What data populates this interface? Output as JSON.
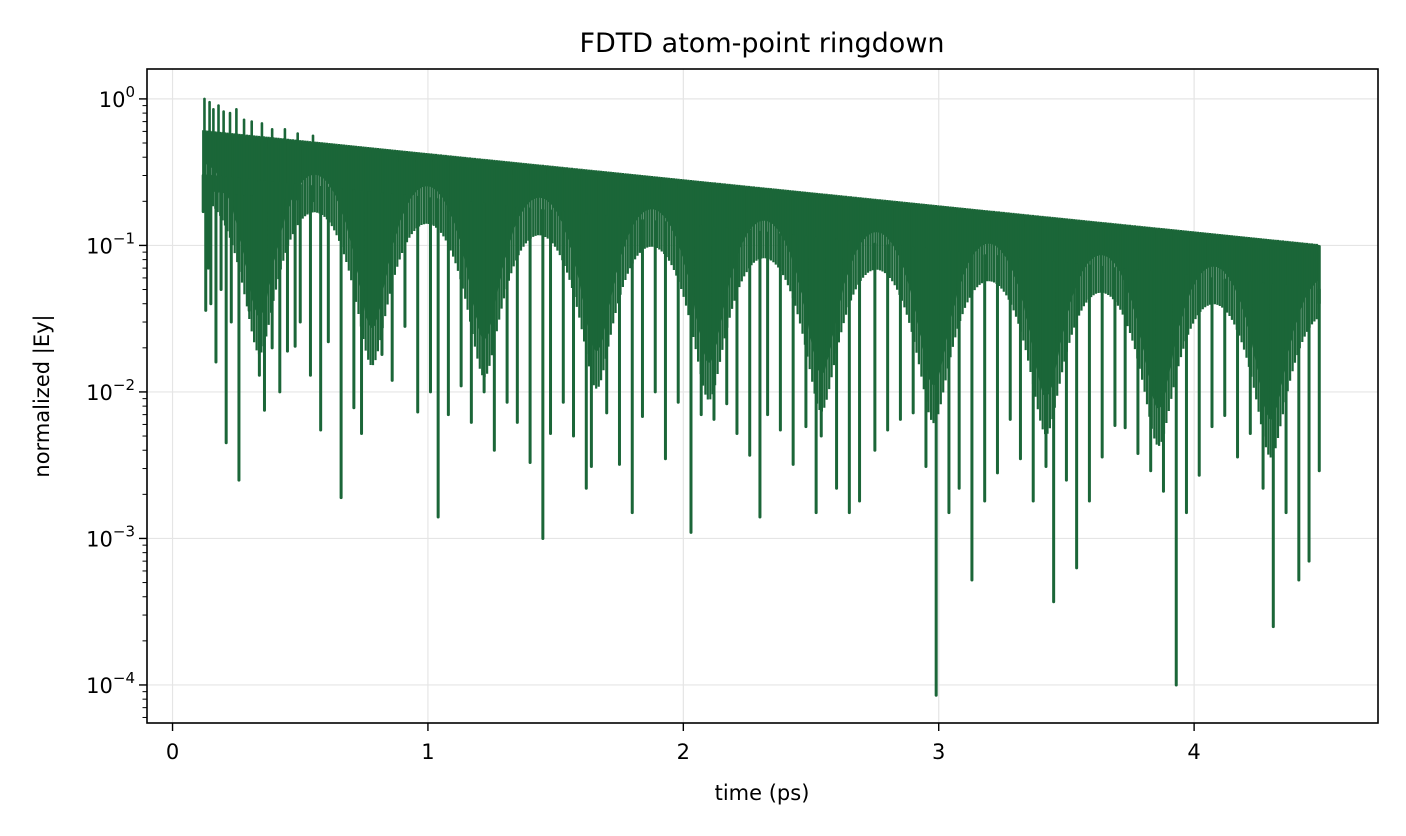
{
  "chart_data": {
    "type": "line",
    "title": "FDTD atom-point ringdown",
    "xlabel": "time (ps)",
    "ylabel": "normalized |Ey|",
    "xlim": [
      -0.1,
      4.72
    ],
    "ylim": [
      5.5e-05,
      1.6
    ],
    "yscale": "log",
    "grid": true,
    "line_color": "#1b6638",
    "x_ticks": [
      0,
      1,
      2,
      3,
      4
    ],
    "x_tick_labels": [
      "0",
      "1",
      "2",
      "3",
      "4"
    ],
    "y_ticks": [
      1,
      0.1,
      0.01,
      0.001,
      0.0001
    ],
    "y_tick_labels": [
      {
        "base": "10",
        "exp": "0"
      },
      {
        "base": "10",
        "exp": "−1"
      },
      {
        "base": "10",
        "exp": "−2"
      },
      {
        "base": "10",
        "exp": "−3"
      },
      {
        "base": "10",
        "exp": "−4"
      }
    ],
    "series": [
      {
        "t_start": 0.12,
        "t_end": 4.49,
        "start_amplitude": 0.6,
        "end_amplitude": 0.1,
        "beat_period": 0.44,
        "x": [
          0.12,
          0.13,
          0.14,
          0.15,
          0.17,
          0.19,
          0.21,
          0.23,
          0.26,
          0.3,
          0.34,
          0.36,
          0.39,
          0.42,
          0.45,
          0.48,
          0.5,
          0.54,
          0.58,
          0.61,
          0.66,
          0.71,
          0.74,
          0.77,
          0.82,
          0.86,
          0.91,
          0.96,
          1.01,
          1.04,
          1.08,
          1.13,
          1.17,
          1.22,
          1.26,
          1.31,
          1.35,
          1.4,
          1.45,
          1.48,
          1.53,
          1.57,
          1.62,
          1.64,
          1.7,
          1.75,
          1.8,
          1.84,
          1.89,
          1.93,
          1.98,
          2.03,
          2.07,
          2.12,
          2.17,
          2.21,
          2.26,
          2.3,
          2.33,
          2.38,
          2.43,
          2.48,
          2.52,
          2.54,
          2.6,
          2.65,
          2.69,
          2.75,
          2.8,
          2.85,
          2.9,
          2.95,
          2.99,
          3.04,
          3.08,
          3.13,
          3.18,
          3.23,
          3.28,
          3.32,
          3.37,
          3.42,
          3.45,
          3.5,
          3.54,
          3.59,
          3.64,
          3.69,
          3.73,
          3.78,
          3.83,
          3.88,
          3.93,
          3.97,
          4.02,
          4.07,
          4.12,
          4.17,
          4.22,
          4.27,
          4.31,
          4.36,
          4.41,
          4.45,
          4.49
        ],
        "y_min": [
          0.17,
          0.036,
          0.07,
          0.04,
          0.016,
          0.05,
          0.0045,
          0.03,
          0.0025,
          0.036,
          0.013,
          0.0075,
          0.02,
          0.01,
          0.019,
          0.0205,
          0.03,
          0.013,
          0.0055,
          0.022,
          0.0019,
          0.0078,
          0.0052,
          0.03,
          0.018,
          0.012,
          0.028,
          0.0073,
          0.01,
          0.0014,
          0.007,
          0.011,
          0.0062,
          0.01,
          0.004,
          0.0085,
          0.0062,
          0.0033,
          0.001,
          0.0052,
          0.0085,
          0.005,
          0.0022,
          0.0031,
          0.0072,
          0.0032,
          0.0015,
          0.0068,
          0.01,
          0.0035,
          0.0085,
          0.0011,
          0.007,
          0.0065,
          0.0083,
          0.0052,
          0.0037,
          0.0014,
          0.007,
          0.0055,
          0.0032,
          0.0058,
          0.0015,
          0.005,
          0.0022,
          0.0015,
          0.0018,
          0.004,
          0.0055,
          0.0065,
          0.0072,
          0.0031,
          8.5e-05,
          0.0015,
          0.0022,
          0.00052,
          0.0018,
          0.0028,
          0.0065,
          0.0035,
          0.0018,
          0.0031,
          0.00037,
          0.0025,
          0.00063,
          0.0018,
          0.0036,
          0.0059,
          0.0057,
          0.0038,
          0.0029,
          0.0021,
          0.0001,
          0.0015,
          0.0027,
          0.0058,
          0.0069,
          0.0036,
          0.0052,
          0.0022,
          0.00025,
          0.0015,
          0.00052,
          0.0007,
          0.0029
        ]
      }
    ]
  }
}
